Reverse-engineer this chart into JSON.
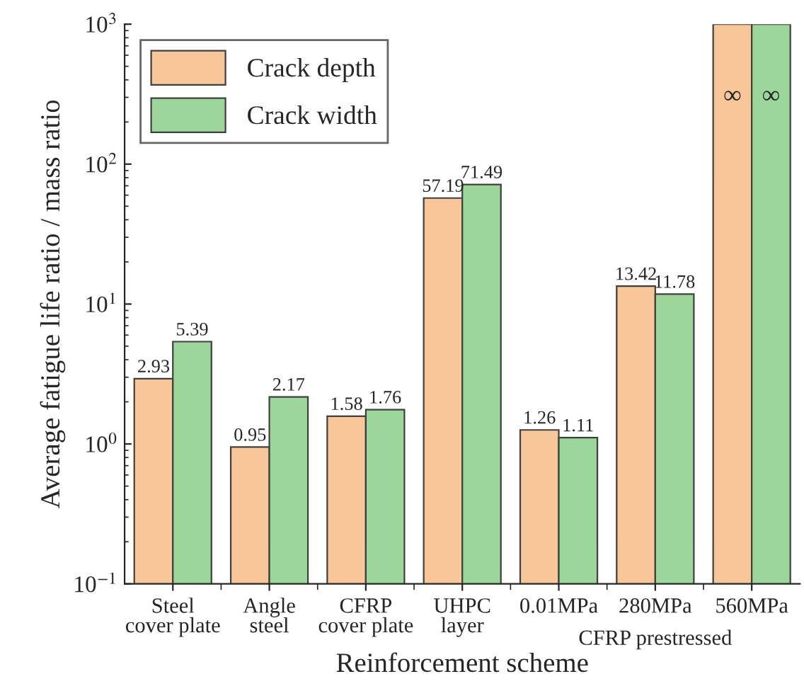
{
  "chart_data": {
    "type": "bar",
    "xlabel": "Reinforcement scheme",
    "ylabel": "Average fatigue life ratio / mass ratio",
    "categories": [
      "Steel\ncover plate",
      "Angle\nsteel",
      "CFRP\ncover plate",
      "UHPC\nlayer",
      "0.01MPa",
      "280MPa",
      "560MPa"
    ],
    "series": [
      {
        "name": "Crack depth",
        "color": "#f7c699",
        "values": [
          2.93,
          0.95,
          1.58,
          57.19,
          1.26,
          13.42,
          1000
        ],
        "value_labels": [
          "2.93",
          "0.95",
          "1.58",
          "57.19",
          "1.26",
          "13.42",
          "∞"
        ]
      },
      {
        "name": "Crack width",
        "color": "#9dd69a",
        "values": [
          5.39,
          2.17,
          1.76,
          71.49,
          1.11,
          11.78,
          1000
        ],
        "value_labels": [
          "5.39",
          "2.17",
          "1.76",
          "71.49",
          "1.11",
          "11.78",
          "∞"
        ]
      }
    ],
    "log": "y",
    "ylim": [
      0.1,
      1000
    ],
    "yticks": [
      {
        "value": 0.1,
        "label": "10$^{−1}$"
      },
      {
        "value": 1,
        "label": "10$^{0}$"
      },
      {
        "value": 10,
        "label": "10$^{1}$"
      },
      {
        "value": 100,
        "label": "10$^{2}$"
      },
      {
        "value": 1000,
        "label": "10$^{3}$"
      }
    ],
    "annotations": [
      "CFRP prestressed"
    ],
    "legend": "top left",
    "grid": false
  }
}
